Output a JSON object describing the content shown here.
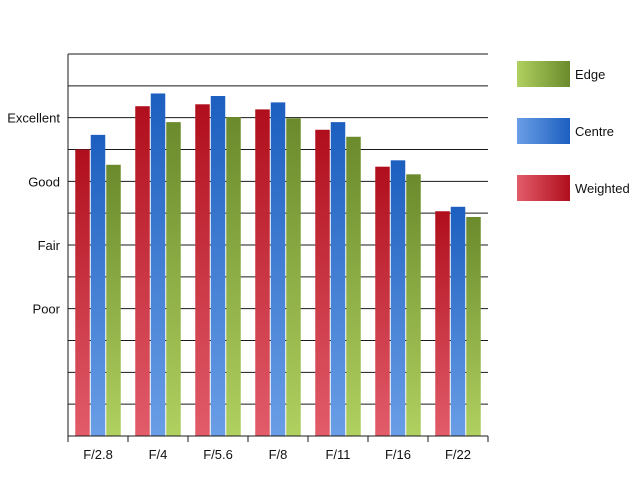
{
  "chart_data": {
    "type": "bar",
    "categories": [
      "F/2.8",
      "F/4",
      "F/5.6",
      "F/8",
      "F/11",
      "F/16",
      "F/22"
    ],
    "series": [
      {
        "name": "Weighted",
        "values": [
          3.5,
          4.18,
          4.21,
          4.13,
          3.81,
          3.23,
          2.53
        ],
        "gradient": [
          "#e25c6a",
          "#b00e1c"
        ]
      },
      {
        "name": "Centre",
        "values": [
          3.73,
          4.38,
          4.34,
          4.24,
          3.93,
          3.33,
          2.6
        ],
        "gradient": [
          "#6a9ee6",
          "#1c5fbf"
        ]
      },
      {
        "name": "Edge",
        "values": [
          3.26,
          3.93,
          4.01,
          3.99,
          3.7,
          3.11,
          2.44
        ],
        "gradient": [
          "#b0d060",
          "#6a8a2c"
        ]
      }
    ],
    "y_ticks": [
      {
        "label": "Poor",
        "value": 1
      },
      {
        "label": "Fair",
        "value": 2
      },
      {
        "label": "Good",
        "value": 3
      },
      {
        "label": "Excellent",
        "value": 4
      }
    ],
    "ylim": [
      -1,
      5
    ],
    "grid_step": 0.5,
    "grid": true,
    "legend_order": [
      "Edge",
      "Centre",
      "Weighted"
    ],
    "legend_position": "right",
    "colors": {
      "grid": "#1a1a1a",
      "text": "#111111"
    }
  }
}
